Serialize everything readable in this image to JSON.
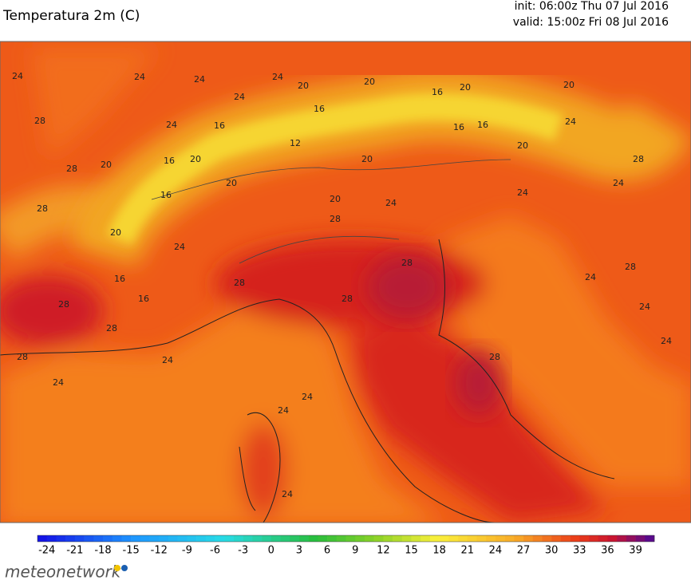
{
  "header": {
    "title": "Temperatura 2m (C)",
    "init": "init: 06:00z Thu 07 Jul 2016",
    "valid": "valid: 15:00z Fri 08 Jul 2016"
  },
  "map": {
    "contour_labels": [
      24,
      24,
      24,
      24,
      28,
      24,
      24,
      20,
      20,
      20,
      20,
      16,
      16,
      16,
      16,
      20,
      12,
      20,
      16,
      16,
      20,
      24,
      28,
      20,
      16,
      20,
      20,
      28,
      24,
      24,
      24,
      28,
      28,
      20,
      24,
      16,
      28,
      16,
      28,
      28,
      28,
      28,
      24,
      28,
      24,
      28,
      24,
      24,
      28,
      24,
      24,
      24,
      24
    ]
  },
  "colorbar": {
    "range": [
      -25,
      41
    ],
    "ticks": [
      -24,
      -21,
      -18,
      -15,
      -12,
      -9,
      -6,
      -3,
      0,
      3,
      6,
      9,
      12,
      15,
      18,
      21,
      24,
      27,
      30,
      33,
      36,
      39
    ]
  },
  "footer": {
    "logo": "meteonetwork"
  }
}
